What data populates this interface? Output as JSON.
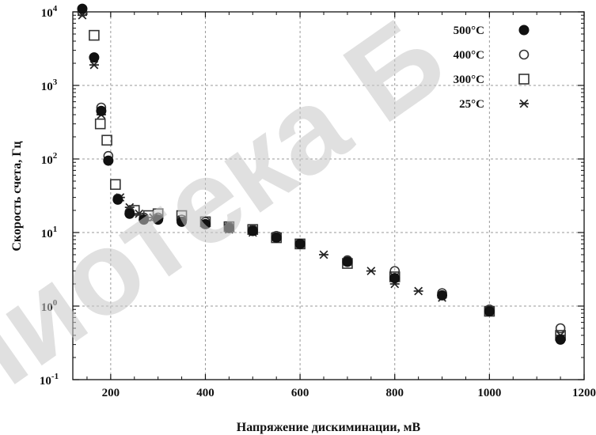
{
  "watermark_text": "пиотека Б",
  "chart_data": {
    "type": "scatter",
    "title": "",
    "xlabel": "Напряжение дискиминации, мВ",
    "ylabel": "Скорость счета, Гц",
    "xlim": [
      120,
      1200
    ],
    "ylog": true,
    "ylim_exp": [
      -1,
      4
    ],
    "xticks": [
      "200",
      "400",
      "600",
      "800",
      "1000",
      "1200"
    ],
    "xtick_values": [
      200,
      400,
      600,
      800,
      1000,
      1200
    ],
    "grid": true,
    "legend_position": "top-right",
    "series": [
      {
        "name": "500°C",
        "marker": "filled-circle",
        "x": [
          140,
          165,
          180,
          195,
          215,
          240,
          270,
          300,
          350,
          400,
          450,
          500,
          550,
          600,
          700,
          800,
          900,
          1000,
          1150
        ],
        "y": [
          11000,
          2400,
          450,
          95,
          28,
          18,
          15,
          15,
          14,
          13,
          11.5,
          10.5,
          8.5,
          7,
          4,
          2.4,
          1.4,
          0.85,
          0.35
        ]
      },
      {
        "name": "400°C",
        "marker": "open-circle",
        "x": [
          140,
          180,
          195,
          215,
          240,
          270,
          300,
          350,
          400,
          450,
          500,
          550,
          600,
          700,
          800,
          900,
          1000,
          1150
        ],
        "y": [
          10000,
          500,
          110,
          29,
          19,
          16,
          16,
          15,
          14,
          12,
          11,
          9,
          7,
          4.2,
          3.0,
          1.5,
          0.9,
          0.5
        ]
      },
      {
        "name": "300°C",
        "marker": "open-square",
        "x": [
          165,
          178,
          192,
          210,
          250,
          280,
          300,
          350,
          400,
          450,
          500,
          550,
          600,
          700,
          800,
          1000,
          1150
        ],
        "y": [
          4800,
          300,
          180,
          45,
          20,
          17,
          18,
          17,
          14,
          12,
          11,
          8.5,
          7,
          3.8,
          2.5,
          0.85,
          0.4
        ]
      },
      {
        "name": "25°C",
        "marker": "asterisk",
        "x": [
          140,
          165,
          180,
          220,
          240,
          260,
          290,
          350,
          400,
          450,
          500,
          550,
          600,
          650,
          700,
          750,
          800,
          850,
          900,
          1000,
          1150
        ],
        "y": [
          9000,
          1900,
          400,
          30,
          22,
          18,
          16,
          15,
          13,
          11,
          10,
          9,
          7,
          5,
          4,
          3,
          2,
          1.6,
          1.3,
          0.85,
          0.4
        ]
      }
    ]
  }
}
